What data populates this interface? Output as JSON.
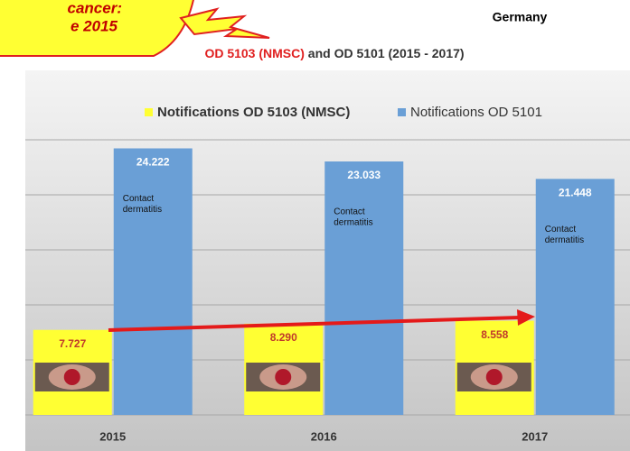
{
  "callout": {
    "lines": [
      "cancer:",
      "e 2015"
    ]
  },
  "country": "Germany",
  "chart_data": {
    "type": "bar",
    "title": {
      "highlight": "OD 5103 (NMSC)",
      "rest": " and OD 5101 (2015 - 2017)"
    },
    "categories": [
      "2015",
      "2016",
      "2017"
    ],
    "series": [
      {
        "name": "Notifications OD 5103 (NMSC)",
        "color": "#ffff33",
        "values": [
          7727,
          8290,
          8558
        ],
        "value_labels": [
          "7.727",
          "8.290",
          "8.558"
        ]
      },
      {
        "name": "Notifications OD 5101",
        "color": "#6a9fd6",
        "values": [
          24222,
          23033,
          21448
        ],
        "value_labels": [
          "24.222",
          "23.033",
          "21.448"
        ]
      }
    ],
    "bar_note": [
      "Contact",
      "dermatitis"
    ],
    "ylim": [
      0,
      25000
    ],
    "yticks": [
      0,
      5000,
      10000,
      15000,
      20000,
      25000
    ],
    "grid": true,
    "legend": "top"
  }
}
